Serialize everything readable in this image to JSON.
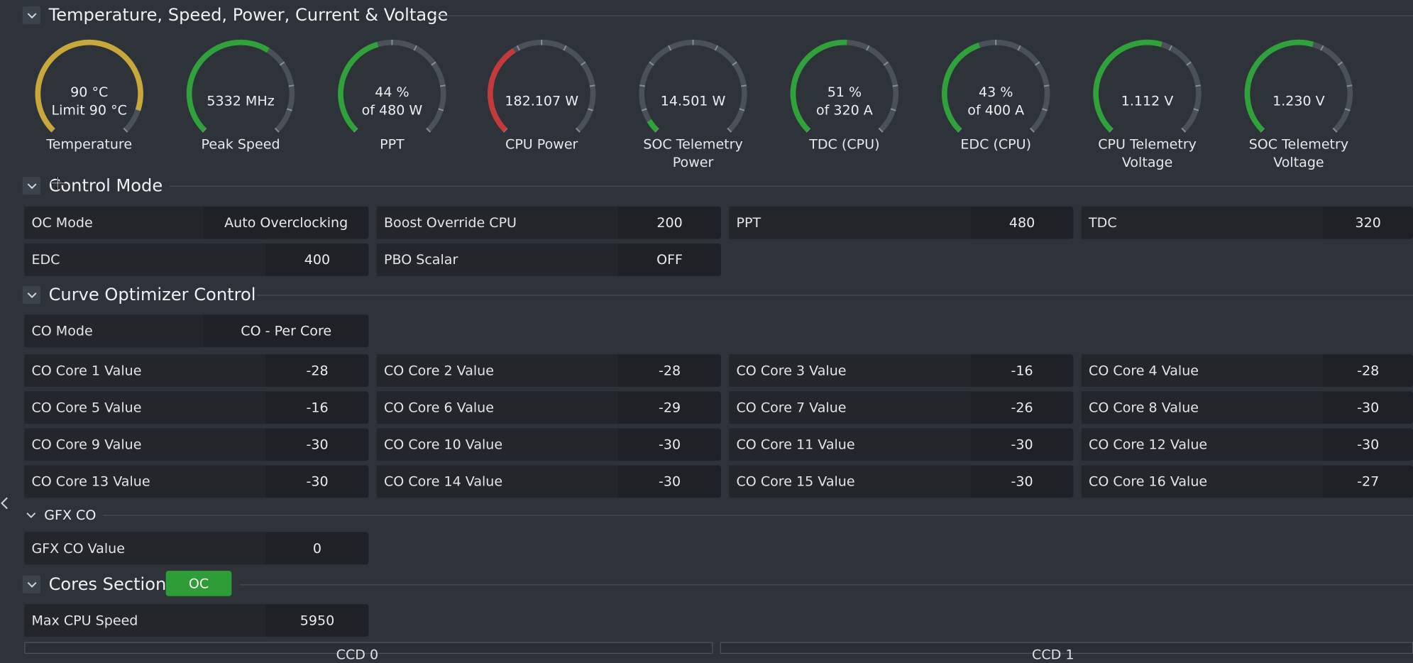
{
  "sections": {
    "metrics": "Temperature, Speed, Power, Current & Voltage",
    "control": "Control Mode",
    "curve": "Curve Optimizer Control",
    "gfx": "GFX CO",
    "cores": "Cores Section"
  },
  "gauges": [
    {
      "line1": "90 °C",
      "line2": "Limit 90 °C",
      "label": "Temperature",
      "label2": "",
      "fill": 0.9,
      "color": "#c8a83a"
    },
    {
      "line1": "5332  MHz",
      "line2": "",
      "label": "Peak Speed",
      "label2": "",
      "fill": 0.62,
      "color": "#2fa33a"
    },
    {
      "line1": "44 %",
      "line2": "of 480 W",
      "label": "PPT",
      "label2": "",
      "fill": 0.44,
      "color": "#2fa33a"
    },
    {
      "line1": "182.107 W",
      "line2": "",
      "label": "CPU Power",
      "label2": "",
      "fill": 0.38,
      "color": "#c43a3a"
    },
    {
      "line1": "14.501 W",
      "line2": "",
      "label": "SOC Telemetry",
      "label2": "Power",
      "fill": 0.05,
      "color": "#2fa33a"
    },
    {
      "line1": "51 %",
      "line2": "of 320 A",
      "label": "TDC (CPU)",
      "label2": "",
      "fill": 0.51,
      "color": "#2fa33a"
    },
    {
      "line1": "43 %",
      "line2": "of 400 A",
      "label": "EDC (CPU)",
      "label2": "",
      "fill": 0.43,
      "color": "#2fa33a"
    },
    {
      "line1": "1.112 V",
      "line2": "",
      "label": "CPU Telemetry",
      "label2": "Voltage",
      "fill": 0.56,
      "color": "#2fa33a"
    },
    {
      "line1": "1.230 V",
      "line2": "",
      "label": "SOC Telemetry",
      "label2": "Voltage",
      "fill": 0.56,
      "color": "#2fa33a"
    }
  ],
  "control": {
    "oc_mode": {
      "label": "OC Mode",
      "value": "Auto Overclocking"
    },
    "boost": {
      "label": "Boost Override CPU",
      "value": "200"
    },
    "ppt": {
      "label": "PPT",
      "value": "480"
    },
    "tdc": {
      "label": "TDC",
      "value": "320"
    },
    "edc": {
      "label": "EDC",
      "value": "400"
    },
    "pbo": {
      "label": "PBO Scalar",
      "value": "OFF"
    }
  },
  "curve": {
    "mode": {
      "label": "CO Mode",
      "value": "CO - Per Core"
    },
    "cores": [
      {
        "label": "CO Core 1 Value",
        "value": "-28"
      },
      {
        "label": "CO Core 2 Value",
        "value": "-28"
      },
      {
        "label": "CO Core 3 Value",
        "value": "-16"
      },
      {
        "label": "CO Core 4 Value",
        "value": "-28"
      },
      {
        "label": "CO Core 5 Value",
        "value": "-16"
      },
      {
        "label": "CO Core 6 Value",
        "value": "-29"
      },
      {
        "label": "CO Core 7 Value",
        "value": "-26"
      },
      {
        "label": "CO Core 8 Value",
        "value": "-30"
      },
      {
        "label": "CO Core 9 Value",
        "value": "-30"
      },
      {
        "label": "CO Core 10 Value",
        "value": "-30"
      },
      {
        "label": "CO Core 11 Value",
        "value": "-30"
      },
      {
        "label": "CO Core 12 Value",
        "value": "-30"
      },
      {
        "label": "CO Core 13 Value",
        "value": "-30"
      },
      {
        "label": "CO Core 14 Value",
        "value": "-30"
      },
      {
        "label": "CO Core 15 Value",
        "value": "-30"
      },
      {
        "label": "CO Core 16 Value",
        "value": "-27"
      }
    ]
  },
  "gfx": {
    "label": "GFX CO Value",
    "value": "0"
  },
  "cores_section": {
    "badge": "OC",
    "max_speed": {
      "label": "Max CPU Speed",
      "value": "5950"
    }
  },
  "ccd": {
    "left": "CCD 0",
    "right": "CCD 1"
  },
  "icons": {
    "collapse": "chevron-down-icon",
    "side": "chevron-left-icon",
    "cursor": "move-cursor-icon"
  }
}
